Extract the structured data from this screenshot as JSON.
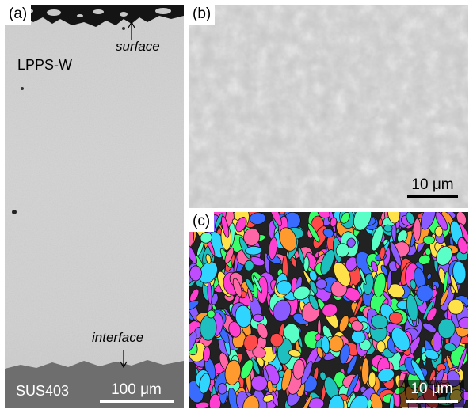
{
  "panels": {
    "a": {
      "label": "(a)",
      "surface_annotation": "surface",
      "coating_name": "LPPS-W",
      "interface_annotation": "interface",
      "substrate_name": "SUS403",
      "scale_label": "100 μm"
    },
    "b": {
      "label": "(b)",
      "scale_label": "10 μm"
    },
    "c": {
      "label": "(c)",
      "scale_label": "10 μm"
    }
  },
  "colors": {
    "sem_gray": "#d0d0d0",
    "substrate_gray": "#6e6e6e",
    "scale_text_light": "#ffffff",
    "scale_text_dark": "#000000"
  }
}
